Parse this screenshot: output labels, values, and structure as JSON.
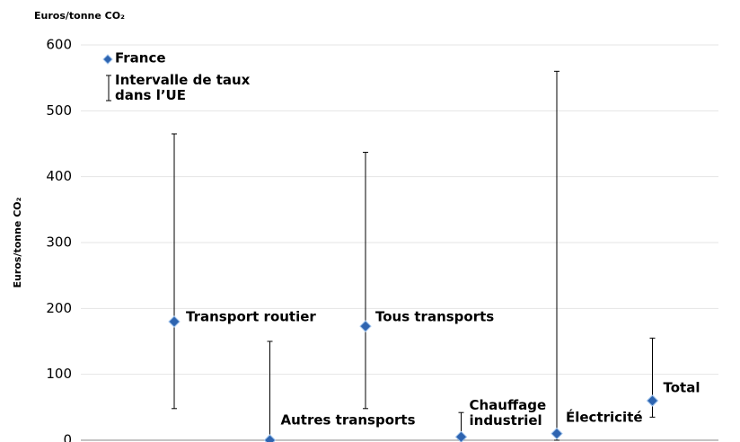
{
  "chart_data": {
    "type": "range",
    "title": "Euros/tonne CO₂",
    "y_label": "Euros/tonne CO₂",
    "categories": [
      "Transport routier",
      "Autres transports",
      "Tous transports",
      "Chauffage industriel",
      "Électricité",
      "Total"
    ],
    "series": [
      {
        "name": "France",
        "color": "#2e64b0",
        "values": [
          180,
          0,
          173,
          5,
          10,
          60
        ]
      },
      {
        "name": "Intervalle de taux dans l’UE",
        "color": "#000000",
        "low": [
          48,
          0,
          48,
          0,
          0,
          35
        ],
        "high": [
          465,
          150,
          437,
          42,
          560,
          155
        ]
      }
    ],
    "ylim": [
      0,
      600
    ],
    "yticks": [
      0,
      100,
      200,
      300,
      400,
      500,
      600
    ],
    "grid": true
  }
}
